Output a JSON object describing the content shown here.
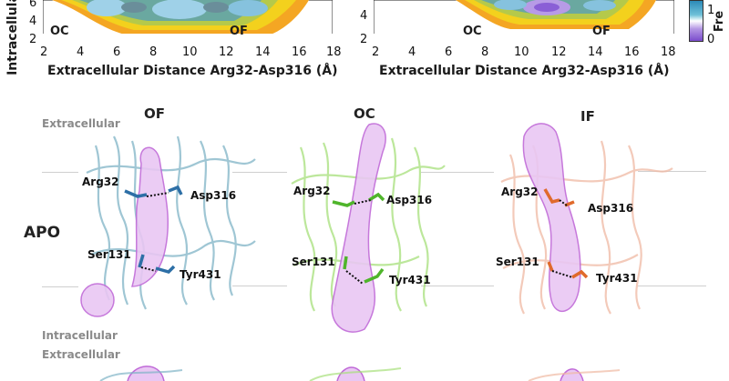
{
  "top": {
    "left_plot": {
      "ylabel_fragment": "Intracellula",
      "xlabel": "Extracellular Distance Arg32-Asp316 (Å)",
      "xticks": [
        "2",
        "4",
        "6",
        "8",
        "10",
        "12",
        "14",
        "16",
        "18"
      ],
      "yticks": [
        "6",
        "4",
        "2"
      ],
      "region_labels": [
        "OC",
        "OF"
      ]
    },
    "right_plot": {
      "xlabel": "Extracellular Distance Arg32-Asp316 (Å)",
      "xticks": [
        "2",
        "4",
        "6",
        "8",
        "10",
        "12",
        "14",
        "16",
        "18"
      ],
      "yticks": [
        "4",
        "2"
      ],
      "region_labels": [
        "OC",
        "OF"
      ]
    },
    "colorbar": {
      "label_fragment": "Fre",
      "ticks": [
        "1",
        "0"
      ]
    }
  },
  "bottom": {
    "state_titles": [
      "OF",
      "OC",
      "IF"
    ],
    "row_label": "APO",
    "region_labels": {
      "extracellular": "Extracellular",
      "intracellular": "Intracellular",
      "extracellular_next": "Extracellular"
    },
    "structures": [
      {
        "state": "OF",
        "labels": [
          "Arg32",
          "Asp316",
          "Ser131",
          "Tyr431"
        ],
        "color": "#7fb4c6",
        "residue": "#2d6fa6"
      },
      {
        "state": "OC",
        "labels": [
          "Arg32",
          "Asp316",
          "Ser131",
          "Tyr431"
        ],
        "color": "#a6e07a",
        "residue": "#4fb52b"
      },
      {
        "state": "IF",
        "labels": [
          "Arg32",
          "Asp316",
          "Ser131",
          "Tyr431"
        ],
        "color": "#f0b9a3",
        "residue": "#e06a2c"
      }
    ]
  },
  "colors": {
    "mesh": "#c06ad8",
    "mesh_fill": "#e9c7f3"
  }
}
